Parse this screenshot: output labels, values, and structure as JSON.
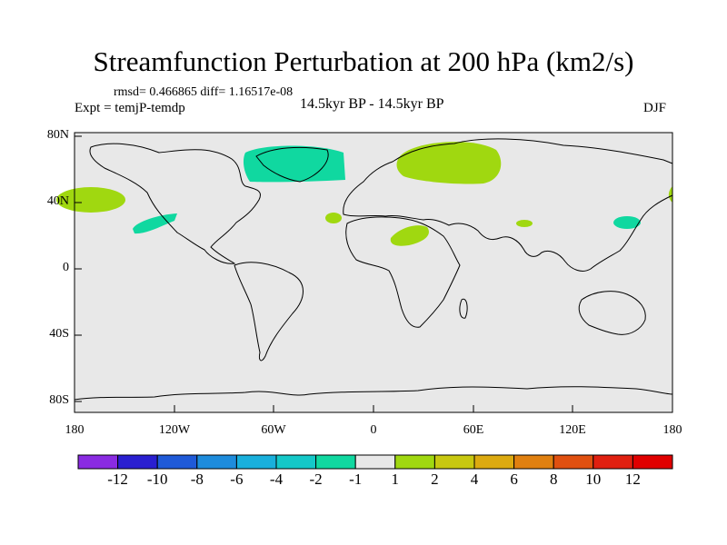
{
  "title": "Streamfunction Perturbation at 200 hPa (km2/s)",
  "stats": "rmsd= 0.466865 diff= 1.16517e-08",
  "experiment": "Expt = temjP-temdp",
  "period": "14.5kyr BP - 14.5kyr BP",
  "season": "DJF",
  "lat_labels": [
    "80N",
    "40N",
    "0",
    "40S",
    "80S"
  ],
  "lon_labels": [
    "180",
    "120W",
    "60W",
    "0",
    "60E",
    "120E",
    "180"
  ],
  "colorbar": {
    "labels": [
      "-12",
      "-10",
      "-8",
      "-6",
      "-4",
      "-2",
      "-1",
      "1",
      "2",
      "4",
      "6",
      "8",
      "10",
      "12"
    ],
    "colors": [
      "#8a2be2",
      "#2a1fd0",
      "#1f5ad8",
      "#1e8cdc",
      "#19b0dc",
      "#14c8c8",
      "#10d8a0",
      "#e8e8e8",
      "#a0d810",
      "#c8c810",
      "#dcaa10",
      "#e08010",
      "#e05010",
      "#e02010",
      "#e00000"
    ]
  },
  "colors": {
    "land_ocean": "#e8e8e8",
    "negative_anomaly": "#10d8a0",
    "positive_anomaly": "#a0d810"
  }
}
